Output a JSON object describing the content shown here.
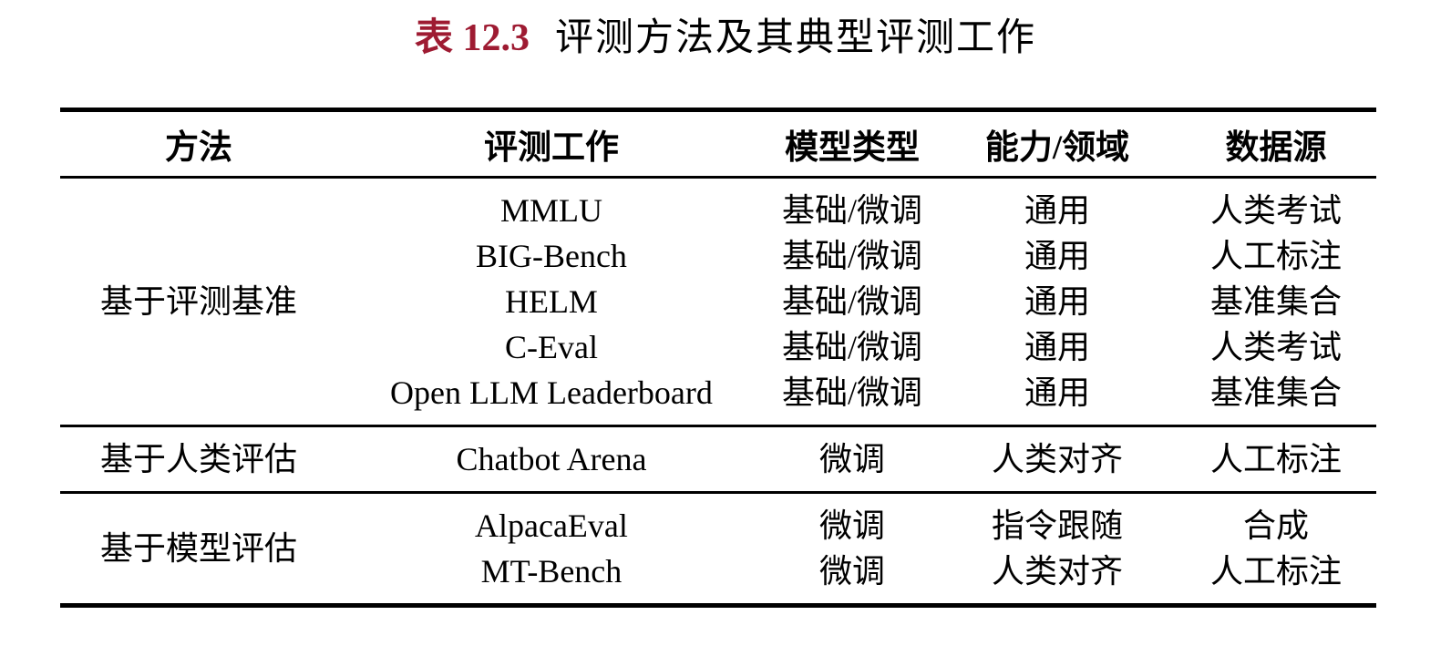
{
  "caption": {
    "number": "表 12.3",
    "text": "评测方法及其典型评测工作"
  },
  "accent_color": "#9E1B32",
  "table": {
    "columns": [
      "方法",
      "评测工作",
      "模型类型",
      "能力/领域",
      "数据源"
    ],
    "column_widths_pct": [
      21.05,
      32.55,
      13.16,
      18.01,
      15.23
    ],
    "groups": [
      {
        "method": "基于评测基准",
        "rows": [
          {
            "work": "MMLU",
            "model_type": "基础/微调",
            "ability": "通用",
            "source": "人类考试"
          },
          {
            "work": "BIG-Bench",
            "model_type": "基础/微调",
            "ability": "通用",
            "source": "人工标注"
          },
          {
            "work": "HELM",
            "model_type": "基础/微调",
            "ability": "通用",
            "source": "基准集合"
          },
          {
            "work": "C-Eval",
            "model_type": "基础/微调",
            "ability": "通用",
            "source": "人类考试"
          },
          {
            "work": "Open LLM Leaderboard",
            "model_type": "基础/微调",
            "ability": "通用",
            "source": "基准集合"
          }
        ]
      },
      {
        "method": "基于人类评估",
        "rows": [
          {
            "work": "Chatbot Arena",
            "model_type": "微调",
            "ability": "人类对齐",
            "source": "人工标注"
          }
        ]
      },
      {
        "method": "基于模型评估",
        "rows": [
          {
            "work": "AlpacaEval",
            "model_type": "微调",
            "ability": "指令跟随",
            "source": "合成"
          },
          {
            "work": "MT-Bench",
            "model_type": "微调",
            "ability": "人类对齐",
            "source": "人工标注"
          }
        ]
      }
    ]
  }
}
